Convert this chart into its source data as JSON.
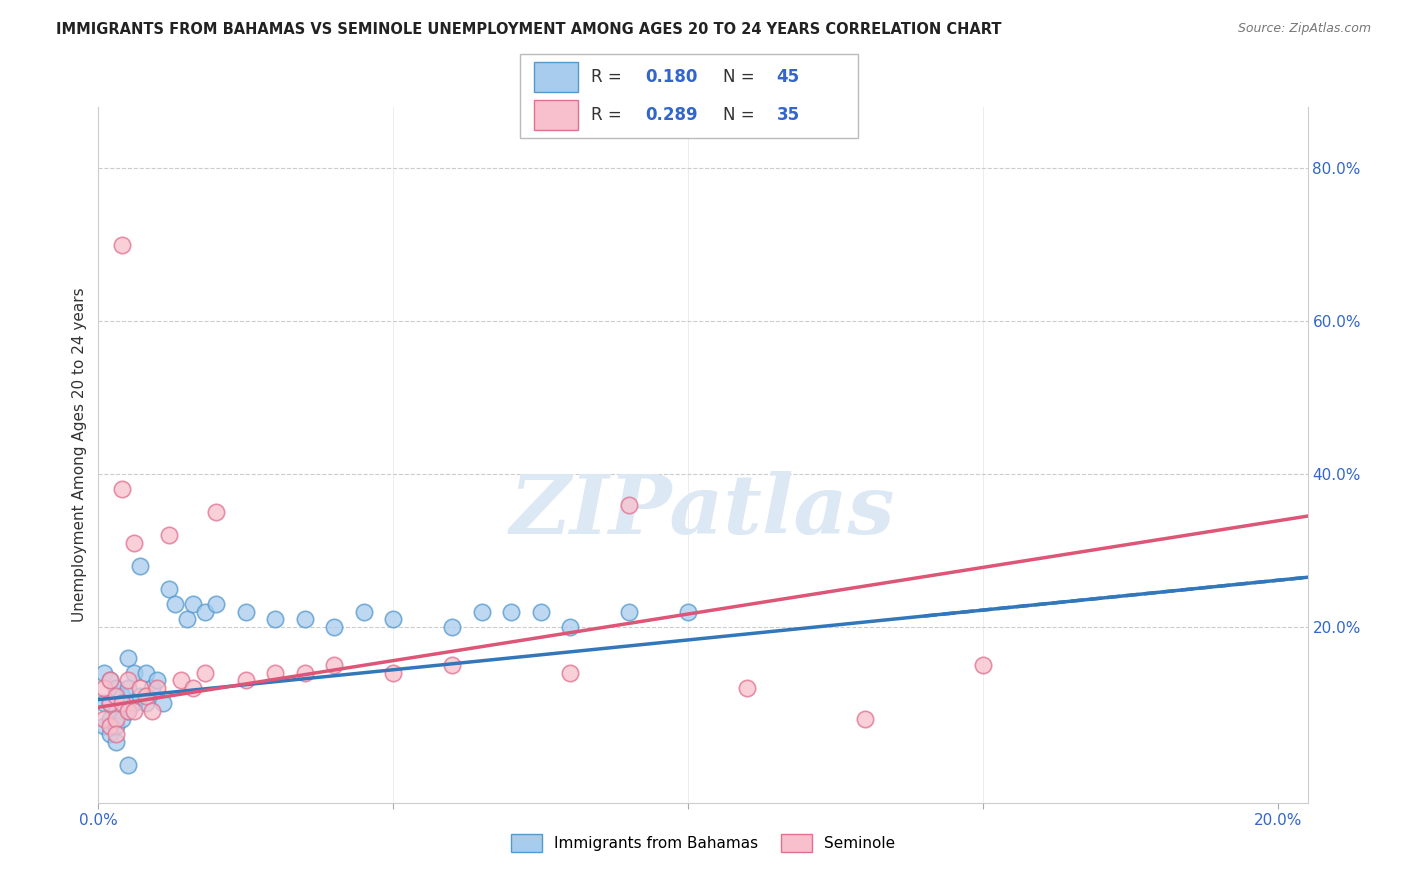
{
  "title": "IMMIGRANTS FROM BAHAMAS VS SEMINOLE UNEMPLOYMENT AMONG AGES 20 TO 24 YEARS CORRELATION CHART",
  "source": "Source: ZipAtlas.com",
  "ylabel": "Unemployment Among Ages 20 to 24 years",
  "xlim": [
    0.0,
    0.205
  ],
  "ylim": [
    -0.03,
    0.88
  ],
  "xticks": [
    0.0,
    0.05,
    0.1,
    0.15,
    0.2
  ],
  "xtick_labels": [
    "0.0%",
    "",
    "",
    "",
    "20.0%"
  ],
  "yticks_right": [
    0.2,
    0.4,
    0.6,
    0.8
  ],
  "ytick_labels_right": [
    "20.0%",
    "40.0%",
    "60.0%",
    "80.0%"
  ],
  "grid_color": "#cccccc",
  "background_color": "#ffffff",
  "blue_fill": "#a8ccee",
  "blue_edge": "#5599cc",
  "pink_fill": "#f7c0cc",
  "pink_edge": "#e07090",
  "blue_line_color": "#3377bb",
  "pink_line_color": "#dd5577",
  "legend_text_color": "#3366cc",
  "title_color": "#222222",
  "source_color": "#777777",
  "ylabel_color": "#333333",
  "watermark": "ZIPatlas",
  "watermark_color": "#dde8f5",
  "blue_x": [
    0.001,
    0.001,
    0.001,
    0.002,
    0.002,
    0.002,
    0.002,
    0.003,
    0.003,
    0.003,
    0.003,
    0.004,
    0.004,
    0.005,
    0.005,
    0.005,
    0.006,
    0.006,
    0.007,
    0.007,
    0.008,
    0.008,
    0.009,
    0.01,
    0.011,
    0.012,
    0.013,
    0.015,
    0.016,
    0.018,
    0.02,
    0.025,
    0.03,
    0.035,
    0.04,
    0.045,
    0.05,
    0.06,
    0.065,
    0.07,
    0.075,
    0.08,
    0.09,
    0.1,
    0.005
  ],
  "blue_y": [
    0.14,
    0.1,
    0.07,
    0.13,
    0.1,
    0.08,
    0.06,
    0.12,
    0.09,
    0.07,
    0.05,
    0.11,
    0.08,
    0.16,
    0.12,
    0.09,
    0.14,
    0.1,
    0.28,
    0.11,
    0.14,
    0.1,
    0.12,
    0.13,
    0.1,
    0.25,
    0.23,
    0.21,
    0.23,
    0.22,
    0.23,
    0.22,
    0.21,
    0.21,
    0.2,
    0.22,
    0.21,
    0.2,
    0.22,
    0.22,
    0.22,
    0.2,
    0.22,
    0.22,
    0.02
  ],
  "pink_x": [
    0.001,
    0.001,
    0.002,
    0.002,
    0.002,
    0.003,
    0.003,
    0.004,
    0.004,
    0.005,
    0.005,
    0.006,
    0.006,
    0.007,
    0.008,
    0.009,
    0.01,
    0.012,
    0.014,
    0.016,
    0.018,
    0.02,
    0.025,
    0.03,
    0.035,
    0.04,
    0.05,
    0.06,
    0.08,
    0.09,
    0.11,
    0.13,
    0.15,
    0.003,
    0.004
  ],
  "pink_y": [
    0.12,
    0.08,
    0.13,
    0.1,
    0.07,
    0.11,
    0.08,
    0.38,
    0.1,
    0.13,
    0.09,
    0.31,
    0.09,
    0.12,
    0.11,
    0.09,
    0.12,
    0.32,
    0.13,
    0.12,
    0.14,
    0.35,
    0.13,
    0.14,
    0.14,
    0.15,
    0.14,
    0.15,
    0.14,
    0.36,
    0.12,
    0.08,
    0.15,
    0.06,
    0.7
  ],
  "blue_trend_x": [
    0.0,
    0.205
  ],
  "blue_trend_y": [
    0.105,
    0.265
  ],
  "pink_trend_x": [
    0.0,
    0.205
  ],
  "pink_trend_y": [
    0.095,
    0.345
  ]
}
